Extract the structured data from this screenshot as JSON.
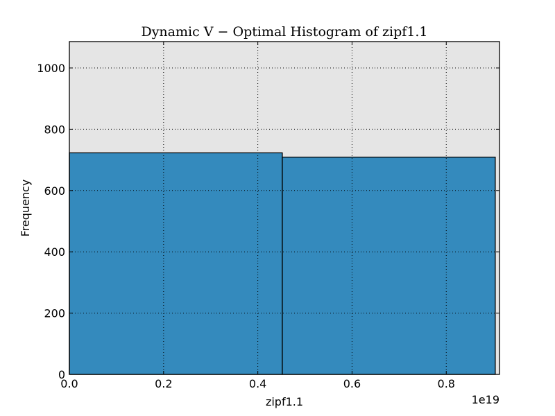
{
  "chart_data": {
    "type": "bar",
    "subtype": "histogram",
    "title": "Dynamic V − Optimal Histogram of zipf1.1",
    "xlabel": "zipf1.1",
    "ylabel": "Frequency",
    "x_offset_label": "1e19",
    "bins": [
      {
        "x_start": 0.0,
        "x_end": 0.452,
        "value": 723
      },
      {
        "x_start": 0.452,
        "x_end": 0.904,
        "value": 709
      }
    ],
    "xlim": [
      0.0,
      0.913
    ],
    "ylim": [
      0,
      1086
    ],
    "x_ticks": [
      {
        "value": 0.0,
        "label": "0.0"
      },
      {
        "value": 0.2,
        "label": "0.2"
      },
      {
        "value": 0.4,
        "label": "0.4"
      },
      {
        "value": 0.6,
        "label": "0.6"
      },
      {
        "value": 0.8,
        "label": "0.8"
      }
    ],
    "y_ticks": [
      {
        "value": 0,
        "label": "0"
      },
      {
        "value": 200,
        "label": "200"
      },
      {
        "value": 400,
        "label": "400"
      },
      {
        "value": 600,
        "label": "600"
      },
      {
        "value": 800,
        "label": "800"
      },
      {
        "value": 1000,
        "label": "1000"
      }
    ],
    "grid": true,
    "colors": {
      "plot_background": "#e5e5e5",
      "bar_fill": "#348abd",
      "bar_edge": "#000000"
    }
  }
}
